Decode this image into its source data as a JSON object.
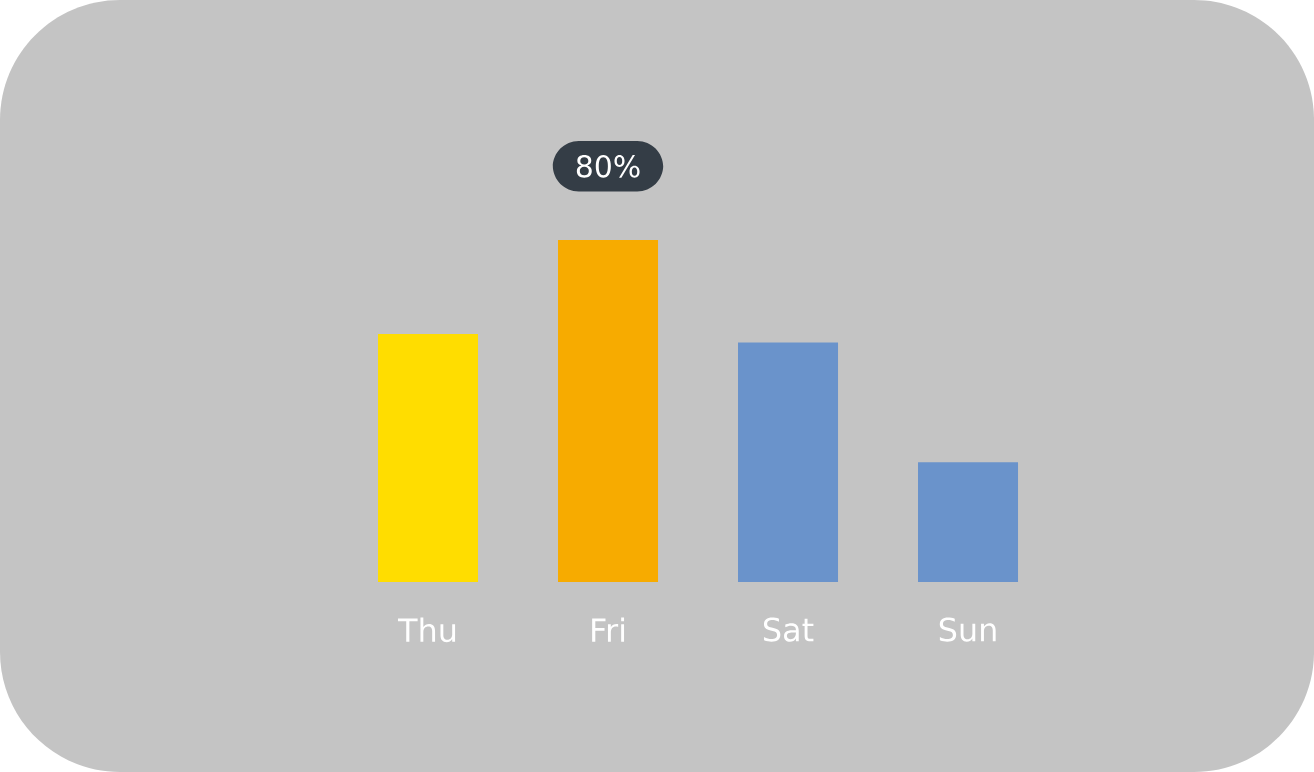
{
  "chart_data": {
    "type": "bar",
    "tick_labels": "x",
    "categories": [
      "Thu",
      "Fri",
      "Sat",
      "Sun"
    ],
    "values": [
      58,
      80,
      56,
      28
    ],
    "colors": [
      "#ffdd00",
      "#f7ab00",
      "#6a93cb",
      "#6a93cb"
    ],
    "value_labels": [
      null,
      "80%",
      null,
      null
    ]
  }
}
